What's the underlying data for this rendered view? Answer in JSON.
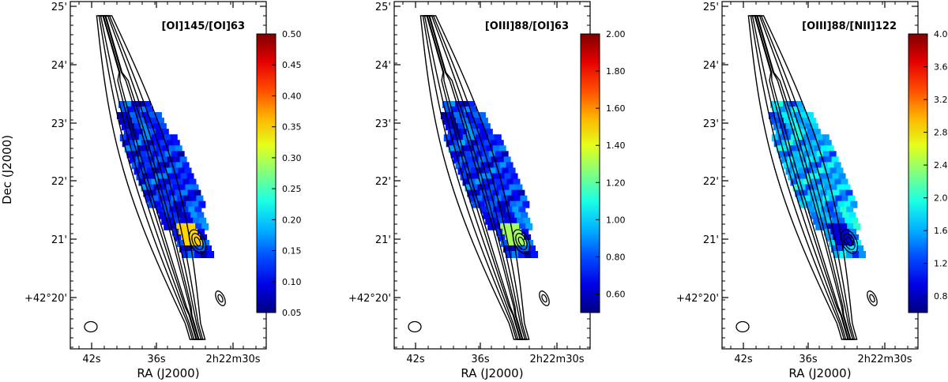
{
  "figure": {
    "shared_ylabel": "Dec (J2000)",
    "shared_xlabel": "RA (J2000)"
  },
  "chart_data": [
    {
      "type": "heatmap",
      "title": "[OI]145/[OI]63",
      "xlabel": "RA (J2000)",
      "ylabel": "Dec (J2000)",
      "x_ticks": [
        "42s",
        "36s",
        "2h22m30s"
      ],
      "y_ticks": [
        "+42°20'",
        "21'",
        "22'",
        "23'",
        "24'",
        "25'"
      ],
      "colorbar": {
        "colormap": "jet",
        "min": 0.05,
        "max": 0.5,
        "ticks": [
          "0.05",
          "0.10",
          "0.15",
          "0.20",
          "0.25",
          "0.30",
          "0.35",
          "0.40",
          "0.45",
          "0.50"
        ]
      },
      "typical_value": 0.12,
      "nucleus_value": 0.35
    },
    {
      "type": "heatmap",
      "title": "[OIII]88/[OI]63",
      "xlabel": "RA (J2000)",
      "ylabel": "",
      "x_ticks": [
        "42s",
        "36s",
        "2h22m30s"
      ],
      "y_ticks": [
        "+42°20'",
        "21'",
        "22'",
        "23'",
        "24'",
        "25'"
      ],
      "colorbar": {
        "colormap": "jet",
        "min": 0.5,
        "max": 2.0,
        "ticks": [
          "0.60",
          "0.80",
          "1.00",
          "1.20",
          "1.40",
          "1.60",
          "1.80",
          "2.00"
        ]
      },
      "typical_value": 0.75,
      "nucleus_value": 1.3
    },
    {
      "type": "heatmap",
      "title": "[OIII]88/[NII]122",
      "xlabel": "RA (J2000)",
      "ylabel": "",
      "x_ticks": [
        "42s",
        "36s",
        "2h22m30s"
      ],
      "y_ticks": [
        "+42°20'",
        "21'",
        "22'",
        "23'",
        "24'",
        "25'"
      ],
      "colorbar": {
        "colormap": "jet",
        "min": 0.6,
        "max": 4.0,
        "ticks": [
          "0.80",
          "1.20",
          "1.60",
          "2.00",
          "2.40",
          "2.80",
          "3.20",
          "3.60",
          "4.00"
        ]
      },
      "typical_value": 1.6,
      "nucleus_value": 0.9
    }
  ]
}
